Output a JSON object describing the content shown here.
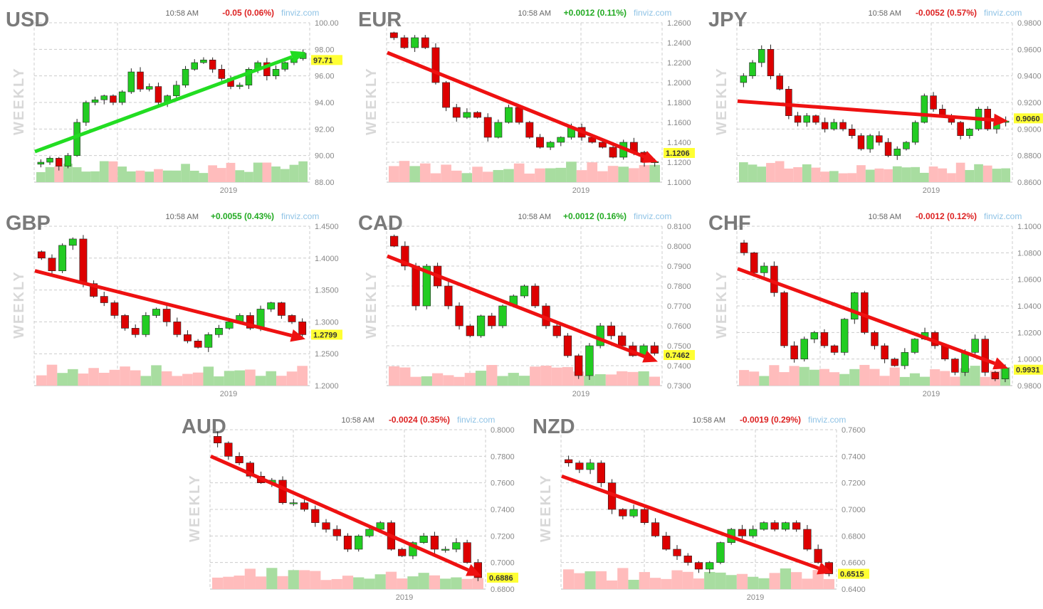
{
  "chart_data": [
    {
      "type": "candlestick",
      "symbol": "USD",
      "time": "10:58 AM",
      "change": "-0.05 (0.06%)",
      "direction": "down",
      "source": "finviz.com",
      "period": "WEEKLY",
      "xtick": "2019",
      "ylim": [
        88,
        100
      ],
      "yticks": [
        "100.00",
        "98.00",
        "96.00",
        "94.00",
        "92.00",
        "90.00",
        "88.00"
      ],
      "last": "97.71",
      "trend": {
        "color": "#22dd22",
        "from": 90.3,
        "to": 97.8
      },
      "closes": [
        89.5,
        89.8,
        89.2,
        90.0,
        92.5,
        94.0,
        94.2,
        94.5,
        94.0,
        94.8,
        96.3,
        95.0,
        95.2,
        94.0,
        94.5,
        95.3,
        96.5,
        97.0,
        97.2,
        96.5,
        95.8,
        95.2,
        95.3,
        96.5,
        97.0,
        96.0,
        96.5,
        97.0,
        97.3,
        97.71
      ]
    },
    {
      "type": "candlestick",
      "symbol": "EUR",
      "time": "10:58 AM",
      "change": "+0.0012 (0.11%)",
      "direction": "up",
      "source": "finviz.com",
      "period": "WEEKLY",
      "xtick": "2019",
      "ylim": [
        1.1,
        1.26
      ],
      "yticks": [
        "1.2600",
        "1.2400",
        "1.2200",
        "1.2000",
        "1.1800",
        "1.1600",
        "1.1400",
        "1.1200",
        "1.1000"
      ],
      "last": "1.1206",
      "trend": {
        "color": "#ee1111",
        "from": 1.23,
        "to": 1.12
      },
      "closes": [
        1.245,
        1.235,
        1.245,
        1.235,
        1.2,
        1.175,
        1.165,
        1.17,
        1.165,
        1.145,
        1.16,
        1.175,
        1.16,
        1.145,
        1.135,
        1.14,
        1.145,
        1.155,
        1.145,
        1.14,
        1.135,
        1.125,
        1.14,
        1.13,
        1.12,
        1.1206
      ]
    },
    {
      "type": "candlestick",
      "symbol": "JPY",
      "time": "10:58 AM",
      "change": "-0.0052 (0.57%)",
      "direction": "down",
      "source": "finviz.com",
      "period": "WEEKLY",
      "xtick": "2019",
      "ylim": [
        0.86,
        0.98
      ],
      "yticks": [
        "0.9800",
        "0.9600",
        "0.9400",
        "0.9200",
        "0.9000",
        "0.8800",
        "0.8600"
      ],
      "last": "0.9060",
      "trend": {
        "color": "#ee1111",
        "from": 0.921,
        "to": 0.906
      },
      "closes": [
        0.94,
        0.95,
        0.96,
        0.94,
        0.93,
        0.91,
        0.905,
        0.91,
        0.905,
        0.9,
        0.905,
        0.9,
        0.895,
        0.885,
        0.895,
        0.89,
        0.88,
        0.885,
        0.89,
        0.905,
        0.925,
        0.915,
        0.91,
        0.905,
        0.895,
        0.9,
        0.915,
        0.9,
        0.905,
        0.906
      ]
    },
    {
      "type": "candlestick",
      "symbol": "GBP",
      "time": "10:58 AM",
      "change": "+0.0055 (0.43%)",
      "direction": "up",
      "source": "finviz.com",
      "period": "WEEKLY",
      "xtick": "2019",
      "ylim": [
        1.2,
        1.45
      ],
      "yticks": [
        "1.4500",
        "1.4000",
        "1.3500",
        "1.3000",
        "1.2500",
        "1.2000"
      ],
      "last": "1.2799",
      "trend": {
        "color": "#ee1111",
        "from": 1.38,
        "to": 1.273
      },
      "closes": [
        1.4,
        1.38,
        1.42,
        1.43,
        1.36,
        1.34,
        1.33,
        1.31,
        1.29,
        1.28,
        1.31,
        1.32,
        1.3,
        1.28,
        1.27,
        1.26,
        1.28,
        1.29,
        1.3,
        1.31,
        1.29,
        1.32,
        1.33,
        1.31,
        1.3,
        1.2799
      ]
    },
    {
      "type": "candlestick",
      "symbol": "CAD",
      "time": "10:58 AM",
      "change": "+0.0012 (0.16%)",
      "direction": "up",
      "source": "finviz.com",
      "period": "WEEKLY",
      "xtick": "2019",
      "ylim": [
        0.73,
        0.81
      ],
      "yticks": [
        "0.8100",
        "0.8000",
        "0.7900",
        "0.7800",
        "0.7700",
        "0.7600",
        "0.7500",
        "0.7400",
        "0.7300"
      ],
      "last": "0.7462",
      "trend": {
        "color": "#ee1111",
        "from": 0.795,
        "to": 0.742
      },
      "closes": [
        0.8,
        0.79,
        0.77,
        0.79,
        0.78,
        0.77,
        0.76,
        0.755,
        0.765,
        0.76,
        0.77,
        0.775,
        0.78,
        0.77,
        0.76,
        0.755,
        0.745,
        0.735,
        0.75,
        0.76,
        0.755,
        0.75,
        0.745,
        0.75,
        0.7462
      ]
    },
    {
      "type": "candlestick",
      "symbol": "CHF",
      "time": "10:58 AM",
      "change": "-0.0012 (0.12%)",
      "direction": "down",
      "source": "finviz.com",
      "period": "WEEKLY",
      "xtick": "2019",
      "ylim": [
        0.98,
        1.1
      ],
      "yticks": [
        "1.1000",
        "1.0800",
        "1.0600",
        "1.0400",
        "1.0200",
        "1.0000",
        "0.9800"
      ],
      "last": "0.9931",
      "trend": {
        "color": "#ee1111",
        "from": 1.068,
        "to": 0.993
      },
      "closes": [
        1.08,
        1.065,
        1.07,
        1.05,
        1.01,
        1.0,
        1.015,
        1.02,
        1.01,
        1.005,
        1.03,
        1.05,
        1.02,
        1.01,
        1.0,
        0.995,
        1.005,
        1.015,
        1.02,
        1.01,
        1.0,
        0.99,
        1.005,
        1.015,
        0.99,
        0.985,
        0.9931
      ]
    },
    {
      "type": "candlestick",
      "symbol": "AUD",
      "time": "10:58 AM",
      "change": "-0.0024 (0.35%)",
      "direction": "down",
      "source": "finviz.com",
      "period": "WEEKLY",
      "xtick": "2019",
      "ylim": [
        0.68,
        0.8
      ],
      "yticks": [
        "0.8000",
        "0.7800",
        "0.7600",
        "0.7400",
        "0.7200",
        "0.7000",
        "0.6800"
      ],
      "last": "0.6886",
      "trend": {
        "color": "#ee1111",
        "from": 0.78,
        "to": 0.69
      },
      "closes": [
        0.79,
        0.78,
        0.775,
        0.765,
        0.76,
        0.762,
        0.745,
        0.745,
        0.74,
        0.73,
        0.725,
        0.72,
        0.71,
        0.72,
        0.725,
        0.73,
        0.71,
        0.705,
        0.715,
        0.72,
        0.71,
        0.71,
        0.715,
        0.7,
        0.6886
      ]
    },
    {
      "type": "candlestick",
      "symbol": "NZD",
      "time": "10:58 AM",
      "change": "-0.0019 (0.29%)",
      "direction": "down",
      "source": "finviz.com",
      "period": "WEEKLY",
      "xtick": "2019",
      "ylim": [
        0.64,
        0.76
      ],
      "yticks": [
        "0.7600",
        "0.7400",
        "0.7200",
        "0.7000",
        "0.6800",
        "0.6600",
        "0.6400"
      ],
      "last": "0.6515",
      "trend": {
        "color": "#ee1111",
        "from": 0.725,
        "to": 0.652
      },
      "closes": [
        0.735,
        0.73,
        0.735,
        0.72,
        0.7,
        0.695,
        0.7,
        0.69,
        0.68,
        0.67,
        0.665,
        0.66,
        0.655,
        0.66,
        0.675,
        0.685,
        0.68,
        0.685,
        0.69,
        0.685,
        0.69,
        0.685,
        0.67,
        0.66,
        0.6515
      ]
    }
  ],
  "colors": {
    "up": "#22cc22",
    "down": "#dd0000",
    "up_text": "#22aa22",
    "down_text": "#dd2222",
    "last_bg": "#ffff33",
    "vol_up": "#a8dda0",
    "vol_down": "#ffbcbc"
  }
}
